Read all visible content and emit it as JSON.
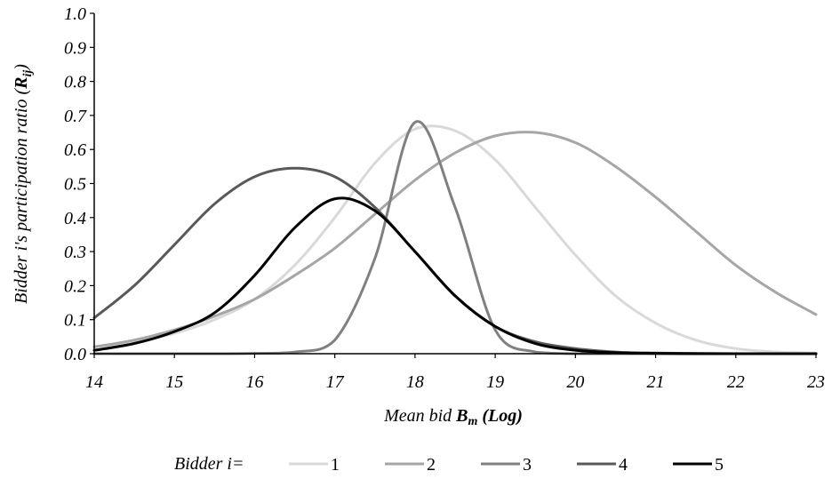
{
  "chart_data": {
    "type": "line",
    "title": "",
    "xlabel": {
      "prefix": "Mean bid ",
      "var": "B",
      "sub": "m",
      "suffix": " (Log)"
    },
    "ylabel": {
      "prefix": "Bidder i's participation ratio (",
      "var": "R",
      "sub": "ij",
      "suffix": ")"
    },
    "xlim": [
      14,
      23
    ],
    "ylim": [
      0,
      1
    ],
    "x_ticks": [
      "14",
      "15",
      "16",
      "17",
      "18",
      "19",
      "20",
      "21",
      "22",
      "23"
    ],
    "y_ticks": [
      "0.0",
      "0.1",
      "0.2",
      "0.3",
      "0.4",
      "0.5",
      "0.6",
      "0.7",
      "0.8",
      "0.9",
      "1.0"
    ],
    "grid": false,
    "legend": {
      "title": "Bidder  i=",
      "placement": "bottom"
    },
    "x": [
      14,
      14.5,
      15,
      15.5,
      16,
      16.5,
      17,
      17.5,
      18,
      18.5,
      19,
      19.5,
      20,
      20.5,
      21,
      21.5,
      22,
      22.5,
      23
    ],
    "series": [
      {
        "name": "1",
        "color": "#d9d9d9",
        "values": [
          0.02,
          0.035,
          0.06,
          0.1,
          0.16,
          0.26,
          0.4,
          0.56,
          0.66,
          0.655,
          0.57,
          0.43,
          0.29,
          0.17,
          0.09,
          0.04,
          0.015,
          0.005,
          0.002
        ]
      },
      {
        "name": "2",
        "color": "#a6a6a6",
        "values": [
          0.02,
          0.04,
          0.07,
          0.11,
          0.16,
          0.23,
          0.31,
          0.41,
          0.51,
          0.59,
          0.64,
          0.65,
          0.62,
          0.55,
          0.46,
          0.36,
          0.26,
          0.18,
          0.115
        ]
      },
      {
        "name": "3",
        "color": "#808080",
        "values": [
          0.0,
          0.0,
          0.0,
          0.0,
          0.001,
          0.005,
          0.04,
          0.28,
          0.68,
          0.43,
          0.07,
          0.005,
          0.0,
          0.0,
          0.0,
          0.0,
          0.0,
          0.0,
          0.0
        ]
      },
      {
        "name": "4",
        "color": "#595959",
        "values": [
          0.105,
          0.2,
          0.32,
          0.44,
          0.52,
          0.545,
          0.52,
          0.43,
          0.3,
          0.17,
          0.08,
          0.035,
          0.015,
          0.005,
          0.002,
          0.001,
          0.0,
          0.0,
          0.0
        ]
      },
      {
        "name": "5",
        "color": "#000000",
        "values": [
          0.01,
          0.03,
          0.065,
          0.12,
          0.23,
          0.37,
          0.455,
          0.42,
          0.3,
          0.17,
          0.08,
          0.03,
          0.01,
          0.003,
          0.001,
          0.0,
          0.0,
          0.0,
          0.0
        ]
      }
    ]
  }
}
